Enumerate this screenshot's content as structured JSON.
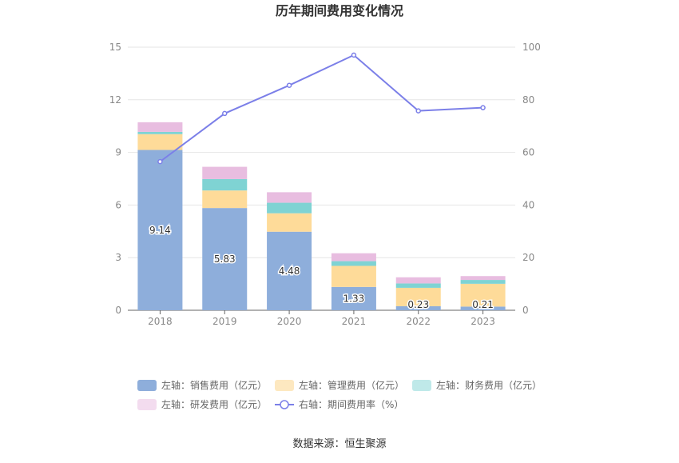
{
  "chart_data": {
    "type": "bar",
    "title": "历年期间费用变化情况",
    "categories": [
      "2018",
      "2019",
      "2020",
      "2021",
      "2022",
      "2023"
    ],
    "series": [
      {
        "name": "左轴：销售费用（亿元）",
        "axis": "left",
        "color": "#8eaedb",
        "values": [
          9.14,
          5.83,
          4.48,
          1.33,
          0.23,
          0.21
        ],
        "labels": [
          "9.14",
          "5.83",
          "4.48",
          "1.33",
          "0.23",
          "0.21"
        ]
      },
      {
        "name": "左轴：管理费用（亿元）",
        "axis": "left",
        "color": "#fedb99",
        "legend_color": "#fde8c0",
        "values": [
          0.9,
          1.0,
          1.05,
          1.2,
          1.05,
          1.3
        ]
      },
      {
        "name": "左轴：财务费用（亿元）",
        "axis": "left",
        "color": "#7fd3d3",
        "legend_color": "#bfe9e9",
        "values": [
          0.13,
          0.65,
          0.6,
          0.27,
          0.25,
          0.22
        ]
      },
      {
        "name": "左轴：研发费用（亿元）",
        "axis": "left",
        "color": "#e8bde0",
        "legend_color": "#f3dcef",
        "values": [
          0.55,
          0.7,
          0.6,
          0.45,
          0.35,
          0.22
        ]
      },
      {
        "name": "右轴：期间费用率（%）",
        "axis": "right",
        "type": "line",
        "color": "#7b7fe8",
        "values": [
          56.5,
          74.8,
          85.5,
          97.0,
          75.8,
          77.0
        ]
      }
    ],
    "y_left": {
      "min": 0,
      "max": 15,
      "ticks": [
        0,
        3,
        6,
        9,
        12,
        15
      ]
    },
    "y_right": {
      "min": 0,
      "max": 100,
      "ticks": [
        0,
        20,
        40,
        60,
        80,
        100
      ]
    },
    "grid": true,
    "legend_position": "bottom"
  },
  "source": "数据来源：恒生聚源"
}
